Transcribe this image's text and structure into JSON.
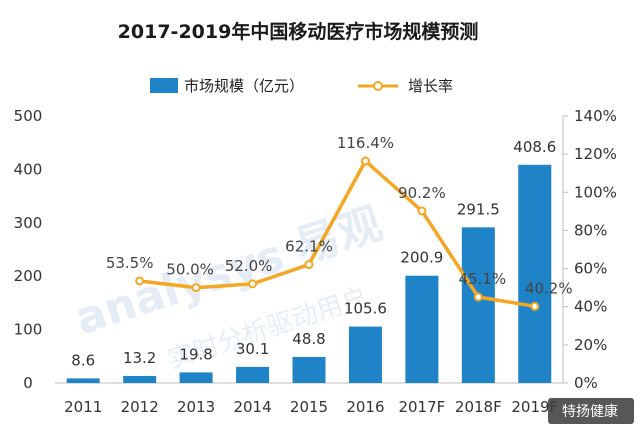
{
  "chart_data": {
    "type": "bar",
    "title": "2017-2019年中国移动医疗市场规模预测",
    "categories": [
      "2011",
      "2012",
      "2013",
      "2014",
      "2015",
      "2016",
      "2017F",
      "2018F",
      "2019F"
    ],
    "series": [
      {
        "name": "市场规模（亿元）",
        "type": "bar",
        "axis": "left",
        "values": [
          8.6,
          13.2,
          19.8,
          30.1,
          48.8,
          105.6,
          200.9,
          291.5,
          408.6
        ],
        "labels": [
          "8.6",
          "13.2",
          "19.8",
          "30.1",
          "48.8",
          "105.6",
          "200.9",
          "291.5",
          "408.6"
        ],
        "color": "#1f84c7"
      },
      {
        "name": "增长率",
        "type": "line",
        "axis": "right",
        "values": [
          null,
          53.5,
          50.0,
          52.0,
          62.1,
          116.4,
          90.2,
          45.1,
          40.2
        ],
        "labels": [
          "",
          "53.5%",
          "50.0%",
          "52.0%",
          "62.1%",
          "116.4%",
          "90.2%",
          "45.1%",
          "40.2%"
        ],
        "color": "#f5a623"
      }
    ],
    "y_left": {
      "min": 0,
      "max": 500,
      "ticks": [
        "0",
        "100",
        "200",
        "300",
        "400",
        "500"
      ]
    },
    "y_right": {
      "min": 0,
      "max": 140,
      "ticks": [
        "0%",
        "20%",
        "40%",
        "60%",
        "80%",
        "100%",
        "120%",
        "140%"
      ]
    },
    "legend": "top",
    "grid": false
  },
  "watermark": {
    "brand": "analysys 易观",
    "sub": "实时分析驱动用户"
  },
  "source_badge": "特扬健康"
}
